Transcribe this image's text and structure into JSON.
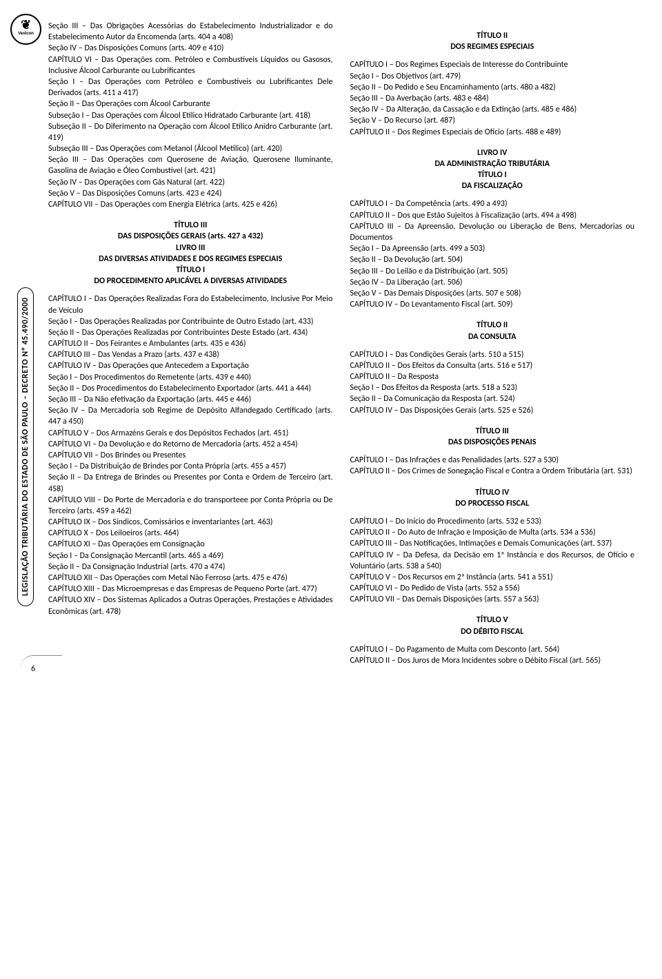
{
  "logo": {
    "brand": "Vestcon",
    "wing": "❦"
  },
  "sidebar": "LEGISLAÇÃO TRIBUTÁRIA DO ESTADO DE SÃO PAULO – DECRETO Nº 45.490/2000",
  "page_number": "6",
  "left": [
    {
      "t": "p",
      "v": "Seção III – Das Obrigações Acessórias do Estabelecimento Industrializador e do Estabelecimento Autor da Encomenda (arts. 404 a 408)"
    },
    {
      "t": "p",
      "v": "Seção IV – Das Disposições Comuns (arts. 409 e 410)"
    },
    {
      "t": "p",
      "v": "CAPÍTULO VI – Das Operações com. Petróleo e Combustíveis Líquidos ou Gasosos, Inclusive Álcool Carburante ou Lubrificantes"
    },
    {
      "t": "p",
      "v": "Seção I – Das Operações com Petróleo e Combustíveis ou Lubrificantes Dele Derivados (arts. 411 a 417)"
    },
    {
      "t": "p",
      "v": "Seção II – Das Operações com Álcool Carburante"
    },
    {
      "t": "p",
      "v": "Subseção I – Das Operações com Álcool Etílico Hidratado Carburante (art. 418)"
    },
    {
      "t": "p",
      "v": "Subseção II – Do Diferimento na Operação com Álcool Etílico Anidro Carburante (art. 419)"
    },
    {
      "t": "p",
      "v": "Subseção III – Das Operações com Metanol (Álcool Metílico) (art. 420)"
    },
    {
      "t": "p",
      "v": "Seção III – Das Operações com Querosene de Aviação, Querosene Iluminante, Gasolina de Aviação e Óleo Combustível (art. 421)"
    },
    {
      "t": "p",
      "v": "Seção IV – Das Operações com Gás Natural (art. 422)"
    },
    {
      "t": "p",
      "v": "Seção V – Das Disposições Comuns (arts. 423 e 424)"
    },
    {
      "t": "p",
      "v": "CAPÍTULO VII – Das Operações com Energia Elétrica (arts. 425 e 426)"
    },
    {
      "t": "h",
      "v": "TÍTULO III"
    },
    {
      "t": "h",
      "v": "DAS DISPOSIÇÕES GERAIS (arts. 427 a 432)"
    },
    {
      "t": "h",
      "v": "LIVRO III"
    },
    {
      "t": "h",
      "v": "DAS DIVERSAS ATIVIDADES E DOS REGIMES ESPECIAIS"
    },
    {
      "t": "h",
      "v": "TÍTULO I"
    },
    {
      "t": "h",
      "v": "DO PROCEDIMENTO APLICÁVEL A DIVERSAS ATIVIDADES"
    },
    {
      "t": "sp"
    },
    {
      "t": "p",
      "v": "CAPÍTULO I – Das Operações Realizadas Fora do Estabelecimento, Inclusive Por Meio de Veículo"
    },
    {
      "t": "p",
      "v": "Seção I – Das Operações Realizadas por Contribuinte de Outro Estado (art. 433)"
    },
    {
      "t": "p",
      "v": "Seção II – Das Operações Realizadas por Contribuintes Deste Estado (art. 434)"
    },
    {
      "t": "p",
      "v": "CAPÍTULO II – Dos Feirantes e Ambulantes (arts. 435 e 436)"
    },
    {
      "t": "p",
      "v": "CAPÍTULO III – Das Vendas a Prazo (arts. 437 e 438)"
    },
    {
      "t": "p",
      "v": "CAPÍTULO IV – Das Operações que Antecedem a Exportação"
    },
    {
      "t": "p",
      "v": "Seção I – Dos Procedimentos do Remetente (arts. 439 e 440)"
    },
    {
      "t": "p",
      "v": "Seção II – Dos Procedimentos do Estabelecimento Exportador (arts. 441 a 444)"
    },
    {
      "t": "p",
      "v": "Seção III – Da Não efetivação da Exportação (arts. 445 e 446)"
    },
    {
      "t": "p",
      "v": "Seção IV – Da Mercadoria sob Regime de Depósito Alfandegado Certificado (arts. 447 a 450)"
    },
    {
      "t": "p",
      "v": "CAPÍTULO V  – Dos Armazéns Gerais e dos Depósitos Fechados (art. 451)"
    },
    {
      "t": "p",
      "v": "CAPÍTULO VI  – Da Devolução e do Retorno de Mercadoria (arts. 452 a 454)"
    },
    {
      "t": "p",
      "v": "CAPÍTULO VII – Dos Brindes ou Presentes"
    },
    {
      "t": "p",
      "v": "Seção I – Da Distribuição de Brindes por Conta Própria (arts. 455 a 457)"
    },
    {
      "t": "p",
      "v": "Seção II – Da Entrega de Brindes ou Presentes por Conta e Ordem de Terceiro (art. 458)"
    },
    {
      "t": "p",
      "v": "CAPÍTULO VIII – Do Porte de Mercadoria e do transporteee por Conta Própria ou De Terceiro (arts. 459 a 462)"
    },
    {
      "t": "p",
      "v": "CAPÍTULO IX – Dos Síndicos, Comissários e inventariantes (art. 463)"
    },
    {
      "t": "p",
      "v": "CAPÍTULO X – Dos Leiloeiros (arts. 464)"
    },
    {
      "t": "p",
      "v": "CAPÍTULO XI – Das Operações em Consignação"
    },
    {
      "t": "p",
      "v": "Seção I – Da Consignação Mercantil (arts. 465 a 469)"
    },
    {
      "t": "p",
      "v": "Seção II – Da Consignação Industrial (arts. 470 a 474)"
    },
    {
      "t": "p",
      "v": "CAPÍTULO XII – Das Operações com Metal Não Ferroso (arts. 475 e 476)"
    },
    {
      "t": "p",
      "v": "CAPÍTULO XIII – Das Microempresas e das Empresas de Pequeno Porte (art. 477)"
    },
    {
      "t": "p",
      "v": "CAPÍTULO XIV – Dos Sistemas Aplicados a Outras Operações, Prestações e Atividades Econômicas (art. 478)"
    }
  ],
  "right": [
    {
      "t": "h",
      "v": "TÍTULO II"
    },
    {
      "t": "h",
      "v": "DOS REGIMES ESPECIAIS"
    },
    {
      "t": "sp"
    },
    {
      "t": "p",
      "v": "CAPÍTULO I – Dos Regimes Especiais de Interesse do Contribuinte"
    },
    {
      "t": "p",
      "v": "Seção I – Dos Objetivos (art. 479)"
    },
    {
      "t": "p",
      "v": "Seção II – Do Pedido e Seu Encaminhamento (arts. 480 a 482)"
    },
    {
      "t": "p",
      "v": "Seção III – Da Averbação (arts. 483 e 484)"
    },
    {
      "t": "p",
      "v": "Seção IV – Da Alteração, da Cassação e da Extinção (arts. 485 e 486)"
    },
    {
      "t": "p",
      "v": "Seção V – Do Recurso (art. 487)"
    },
    {
      "t": "p",
      "v": "CAPÍTULO II – Dos Regimes Especiais de Ofício (arts. 488 e 489)"
    },
    {
      "t": "h",
      "v": "LIVRO IV"
    },
    {
      "t": "h",
      "v": "DA ADMINISTRAÇÃO TRIBUTÁRIA"
    },
    {
      "t": "h",
      "v": "TÍTULO I"
    },
    {
      "t": "h",
      "v": "DA FISCALIZAÇÃO"
    },
    {
      "t": "sp"
    },
    {
      "t": "p",
      "v": "CAPÍTULO I – Da Competência (arts. 490 a 493)"
    },
    {
      "t": "p",
      "v": "CAPÍTULO II – Dos que Estão Sujeitos à Fiscalização (arts. 494 a 498)"
    },
    {
      "t": "p",
      "v": "CAPÍTULO III – Da Apreensão, Devolução ou Liberação de Bens, Mercadorias ou Documentos"
    },
    {
      "t": "p",
      "v": "Seção I – Da Apreensão (arts. 499 a 503)"
    },
    {
      "t": "p",
      "v": "Seção II – Da Devolução (art. 504)"
    },
    {
      "t": "p",
      "v": "Seção III – Do Leilão e da Distribuição (art. 505)"
    },
    {
      "t": "p",
      "v": "Seção IV – Da Liberação (art. 506)"
    },
    {
      "t": "p",
      "v": "Seção V – Das Demais Disposições (arts. 507 e 508)"
    },
    {
      "t": "p",
      "v": "CAPÍTULO IV – Do Levantamento Fiscal (art. 509)"
    },
    {
      "t": "h",
      "v": "TÍTULO II"
    },
    {
      "t": "h",
      "v": "DA CONSULTA"
    },
    {
      "t": "sp"
    },
    {
      "t": "p",
      "v": "CAPÍTULO I  – Das Condições Gerais (arts. 510 a 515)"
    },
    {
      "t": "p",
      "v": "CAPÍTULO II – Dos Efeitos da Consulta (arts. 516 e 517)"
    },
    {
      "t": "p",
      "v": "CAPÍTULO II – Da Resposta"
    },
    {
      "t": "p",
      "v": "Seção I – Dos Efeitos da Resposta (arts. 518 a 523)"
    },
    {
      "t": "p",
      "v": "Seção II – Da Comunicação da Resposta (art. 524)"
    },
    {
      "t": "p",
      "v": "CAPÍTULO IV – Das Disposições Gerais (arts. 525 e 526)"
    },
    {
      "t": "h",
      "v": "TÍTULO III"
    },
    {
      "t": "h",
      "v": "DAS DISPOSIÇÕES PENAIS"
    },
    {
      "t": "sp"
    },
    {
      "t": "p",
      "v": "CAPÍTULO I – Das Infrações e das Penalidades (arts. 527 a 530)"
    },
    {
      "t": "p",
      "v": "CAPÍTULO II – Dos Crimes de Sonegação Fiscal e Contra a Ordem Tributária (art. 531)"
    },
    {
      "t": "h",
      "v": "TÍTULO IV"
    },
    {
      "t": "h",
      "v": "DO PROCESSO FISCAL"
    },
    {
      "t": "sp"
    },
    {
      "t": "p",
      "v": "CAPÍTULO I – Do Início do Procedimento (arts. 532 e 533)"
    },
    {
      "t": "p",
      "v": "CAPÍTULO II – Do Auto de Infração e Imposição de Multa (arts. 534 a 536)"
    },
    {
      "t": "p",
      "v": "CAPÍTULO III – Das Notificações, Intimações e Demais Comunicações (art. 537)"
    },
    {
      "t": "p",
      "v": "CAPÍTULO IV – Da Defesa, da Decisão em 1ª Instância e dos Recursos, de Ofício e Voluntário (arts. 538 a 540)"
    },
    {
      "t": "p",
      "v": "CAPÍTULO V – Dos Recursos em 2ª Instância (arts. 541 a 551)"
    },
    {
      "t": "p",
      "v": "CAPÍTULO VI – Do Pedido de Vista (arts. 552 a 556)"
    },
    {
      "t": "p",
      "v": "CAPÍTULO VII – Das Demais Disposições (arts. 557 a 563)"
    },
    {
      "t": "h",
      "v": "TÍTULO V"
    },
    {
      "t": "h",
      "v": "DO DÉBITO FISCAL"
    },
    {
      "t": "sp"
    },
    {
      "t": "p",
      "v": "CAPÍTULO I – Do Pagamento de Multa com Desconto (art. 564)"
    },
    {
      "t": "p",
      "v": "CAPÍTULO II – Dos Juros de Mora Incidentes sobre o Débito Fiscal (art. 565)"
    }
  ]
}
